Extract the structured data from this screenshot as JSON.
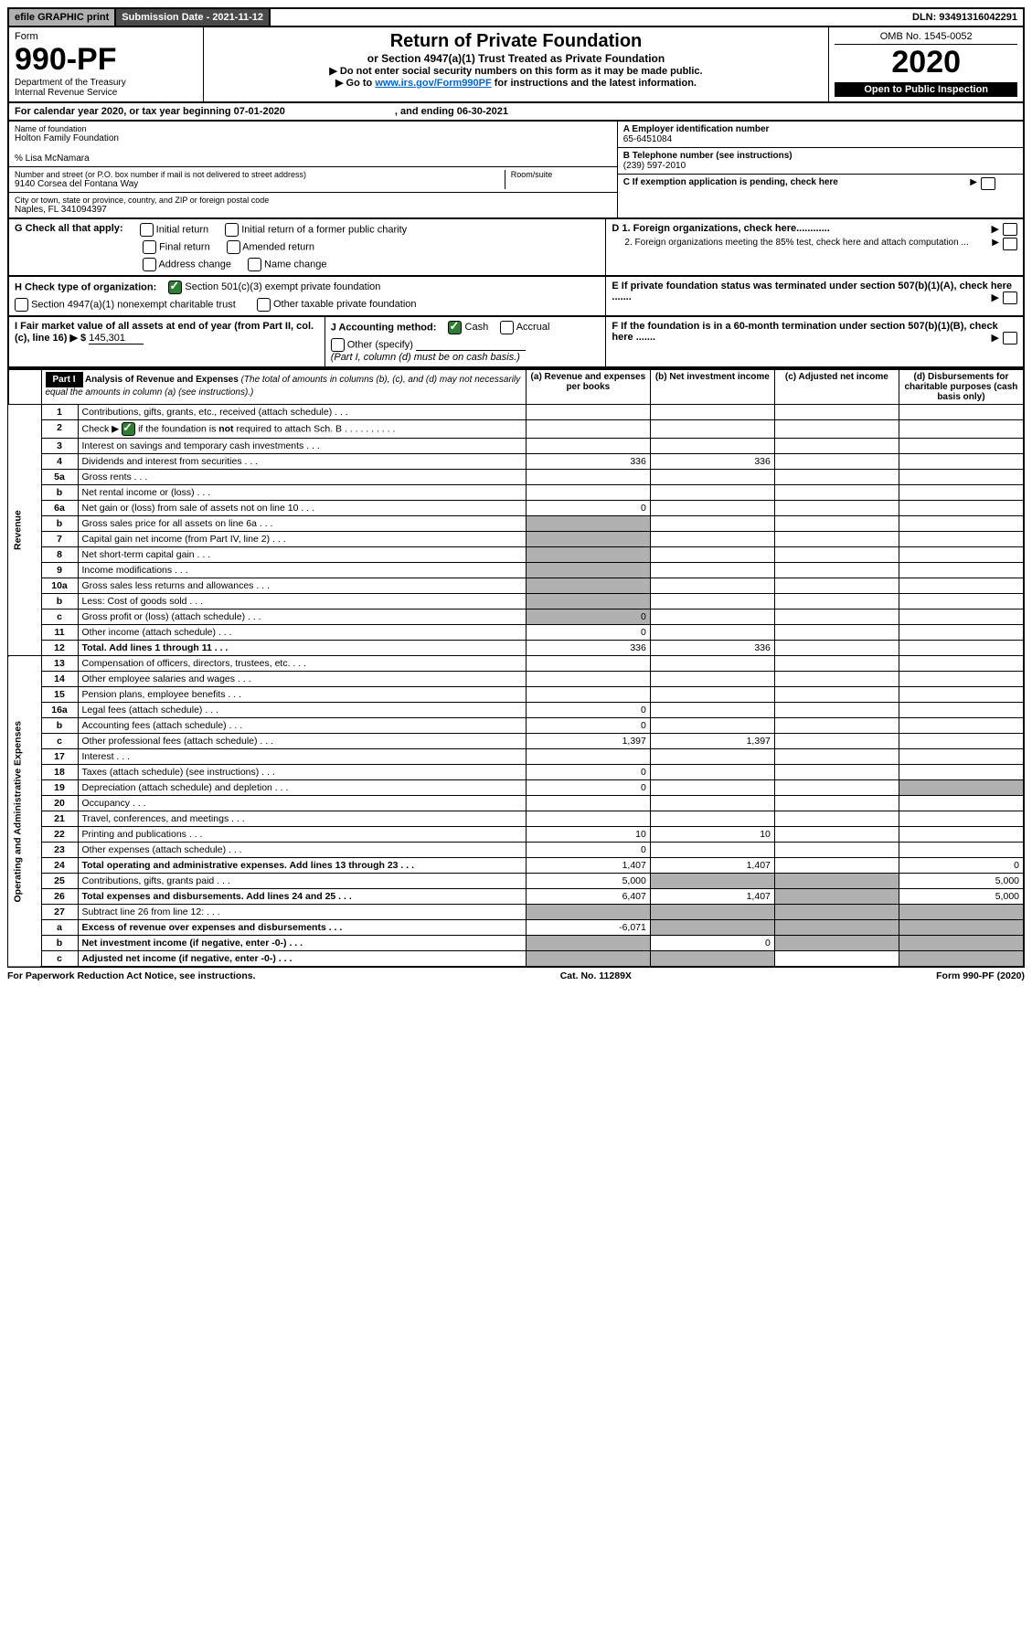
{
  "topbar": {
    "efile": "efile GRAPHIC print",
    "subdate_label": "Submission Date - 2021-11-12",
    "dln": "DLN: 93491316042291"
  },
  "header": {
    "form_label": "Form",
    "form_no": "990-PF",
    "dept1": "Department of the Treasury",
    "dept2": "Internal Revenue Service",
    "title": "Return of Private Foundation",
    "subtitle": "or Section 4947(a)(1) Trust Treated as Private Foundation",
    "instr1": "▶ Do not enter social security numbers on this form as it may be made public.",
    "instr2_pre": "▶ Go to ",
    "instr2_link": "www.irs.gov/Form990PF",
    "instr2_post": " for instructions and the latest information.",
    "omb": "OMB No. 1545-0052",
    "year": "2020",
    "openpub": "Open to Public Inspection"
  },
  "calrow": {
    "pre": "For calendar year 2020, or tax year beginning 07-01-2020",
    "mid": ", and ending 06-30-2021"
  },
  "info": {
    "name_label": "Name of foundation",
    "name": "Holton Family Foundation",
    "pct": "% Lisa McNamara",
    "addr_label": "Number and street (or P.O. box number if mail is not delivered to street address)",
    "addr": "9140 Corsea del Fontana Way",
    "room_label": "Room/suite",
    "city_label": "City or town, state or province, country, and ZIP or foreign postal code",
    "city": "Naples, FL 341094397",
    "a_label": "A Employer identification number",
    "a_val": "65-6451084",
    "b_label": "B Telephone number (see instructions)",
    "b_val": "(239) 597-2010",
    "c_label": "C If exemption application is pending, check here",
    "d1": "D 1. Foreign organizations, check here............",
    "d2": "2. Foreign organizations meeting the 85% test, check here and attach computation ...",
    "e": "E If private foundation status was terminated under section 507(b)(1)(A), check here .......",
    "f": "F If the foundation is in a 60-month termination under section 507(b)(1)(B), check here ......."
  },
  "g": {
    "label": "G Check all that apply:",
    "o1": "Initial return",
    "o2": "Initial return of a former public charity",
    "o3": "Final return",
    "o4": "Amended return",
    "o5": "Address change",
    "o6": "Name change"
  },
  "h": {
    "label": "H Check type of organization:",
    "o1": "Section 501(c)(3) exempt private foundation",
    "o2": "Section 4947(a)(1) nonexempt charitable trust",
    "o3": "Other taxable private foundation"
  },
  "i": {
    "label": "I Fair market value of all assets at end of year (from Part II, col. (c), line 16) ▶ $",
    "val": "145,301"
  },
  "j": {
    "label": "J Accounting method:",
    "o1": "Cash",
    "o2": "Accrual",
    "o3": "Other (specify)",
    "note": "(Part I, column (d) must be on cash basis.)"
  },
  "part1": {
    "hdr": "Part I",
    "title": "Analysis of Revenue and Expenses",
    "title_note": "(The total of amounts in columns (b), (c), and (d) may not necessarily equal the amounts in column (a) (see instructions).)",
    "col_a": "(a) Revenue and expenses per books",
    "col_b": "(b) Net investment income",
    "col_c": "(c) Adjusted net income",
    "col_d": "(d) Disbursements for charitable purposes (cash basis only)"
  },
  "side": {
    "rev": "Revenue",
    "exp": "Operating and Administrative Expenses"
  },
  "rows": [
    {
      "n": "1",
      "l": "Contributions, gifts, grants, etc., received (attach schedule)"
    },
    {
      "n": "2",
      "l": "Check ▶ ☑ if the foundation is not required to attach Sch. B",
      "chk": true
    },
    {
      "n": "3",
      "l": "Interest on savings and temporary cash investments"
    },
    {
      "n": "4",
      "l": "Dividends and interest from securities",
      "a": "336",
      "b": "336"
    },
    {
      "n": "5a",
      "l": "Gross rents"
    },
    {
      "n": "b",
      "l": "Net rental income or (loss)",
      "blank": true
    },
    {
      "n": "6a",
      "l": "Net gain or (loss) from sale of assets not on line 10",
      "a": "0"
    },
    {
      "n": "b",
      "l": "Gross sales price for all assets on line 6a",
      "blank": true,
      "sa": true
    },
    {
      "n": "7",
      "l": "Capital gain net income (from Part IV, line 2)",
      "sa": true
    },
    {
      "n": "8",
      "l": "Net short-term capital gain",
      "sa": true
    },
    {
      "n": "9",
      "l": "Income modifications",
      "sa": true
    },
    {
      "n": "10a",
      "l": "Gross sales less returns and allowances",
      "blank": true,
      "sa": true
    },
    {
      "n": "b",
      "l": "Less: Cost of goods sold",
      "blank": true,
      "sa": true
    },
    {
      "n": "c",
      "l": "Gross profit or (loss) (attach schedule)",
      "a": "0",
      "sa": true
    },
    {
      "n": "11",
      "l": "Other income (attach schedule)",
      "a": "0"
    },
    {
      "n": "12",
      "l": "Total. Add lines 1 through 11",
      "a": "336",
      "b": "336",
      "bold": true
    },
    {
      "n": "13",
      "l": "Compensation of officers, directors, trustees, etc."
    },
    {
      "n": "14",
      "l": "Other employee salaries and wages"
    },
    {
      "n": "15",
      "l": "Pension plans, employee benefits"
    },
    {
      "n": "16a",
      "l": "Legal fees (attach schedule)",
      "a": "0"
    },
    {
      "n": "b",
      "l": "Accounting fees (attach schedule)",
      "a": "0"
    },
    {
      "n": "c",
      "l": "Other professional fees (attach schedule)",
      "a": "1,397",
      "b": "1,397"
    },
    {
      "n": "17",
      "l": "Interest"
    },
    {
      "n": "18",
      "l": "Taxes (attach schedule) (see instructions)",
      "a": "0"
    },
    {
      "n": "19",
      "l": "Depreciation (attach schedule) and depletion",
      "a": "0",
      "sd": true
    },
    {
      "n": "20",
      "l": "Occupancy"
    },
    {
      "n": "21",
      "l": "Travel, conferences, and meetings"
    },
    {
      "n": "22",
      "l": "Printing and publications",
      "a": "10",
      "b": "10"
    },
    {
      "n": "23",
      "l": "Other expenses (attach schedule)",
      "a": "0"
    },
    {
      "n": "24",
      "l": "Total operating and administrative expenses. Add lines 13 through 23",
      "a": "1,407",
      "b": "1,407",
      "d": "0",
      "bold": true
    },
    {
      "n": "25",
      "l": "Contributions, gifts, grants paid",
      "a": "5,000",
      "d": "5,000",
      "sb": true,
      "sc": true
    },
    {
      "n": "26",
      "l": "Total expenses and disbursements. Add lines 24 and 25",
      "a": "6,407",
      "b": "1,407",
      "d": "5,000",
      "bold": true,
      "sc": true
    },
    {
      "n": "27",
      "l": "Subtract line 26 from line 12:",
      "sall": true
    },
    {
      "n": "a",
      "l": "Excess of revenue over expenses and disbursements",
      "a": "-6,071",
      "bold": true,
      "sb": true,
      "sc": true,
      "sd": true
    },
    {
      "n": "b",
      "l": "Net investment income (if negative, enter -0-)",
      "b": "0",
      "bold": true,
      "sa": true,
      "sc": true,
      "sd": true
    },
    {
      "n": "c",
      "l": "Adjusted net income (if negative, enter -0-)",
      "bold": true,
      "sa": true,
      "sb": true,
      "sd": true
    }
  ],
  "footer": {
    "left": "For Paperwork Reduction Act Notice, see instructions.",
    "mid": "Cat. No. 11289X",
    "right": "Form 990-PF (2020)"
  },
  "colors": {
    "topbar_btn": "#b0b0b0",
    "topbar_dark": "#4a4a4a",
    "shaded": "#b0b0b0",
    "check": "#2e7d32",
    "link": "#0066cc"
  }
}
